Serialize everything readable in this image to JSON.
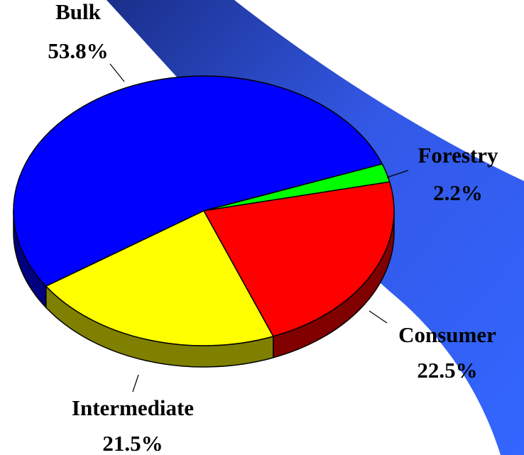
{
  "chart_data": {
    "type": "pie",
    "categories": [
      "Bulk",
      "Forestry",
      "Consumer",
      "Intermediate"
    ],
    "values": [
      53.8,
      2.2,
      22.5,
      21.5
    ],
    "value_labels": [
      "53.8%",
      "2.2%",
      "22.5%",
      "21.5%"
    ],
    "colors": [
      "#0000ff",
      "#00ff00",
      "#ff0000",
      "#ffff00"
    ],
    "side_colors": [
      "#000080",
      "#008000",
      "#800000",
      "#808000"
    ]
  }
}
